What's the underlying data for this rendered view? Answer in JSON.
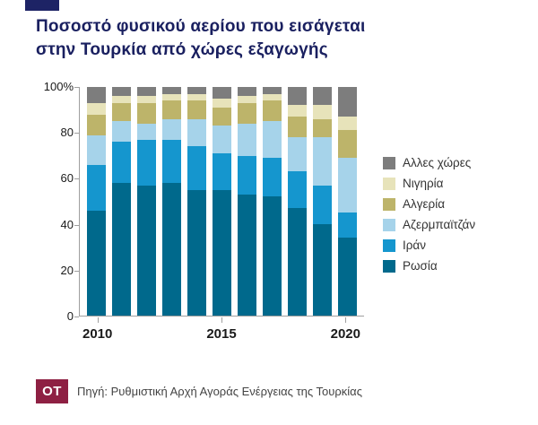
{
  "brand": {
    "square_color": "#1d2365",
    "title_color": "#1a2060"
  },
  "title": {
    "line1": "Ποσοστό φυσικού αερίου που εισάγεται",
    "line2": "στην Τουρκία από χώρες εξαγωγής"
  },
  "chart_data": {
    "type": "bar",
    "stacked": true,
    "title": "Ποσοστό φυσικού αερίου που εισάγεται στην Τουρκία από χώρες εξαγωγής",
    "x": [
      2010,
      2011,
      2012,
      2013,
      2014,
      2015,
      2016,
      2017,
      2018,
      2019,
      2020
    ],
    "x_labeled": [
      2010,
      2015,
      2020
    ],
    "ylim": [
      0,
      100
    ],
    "yticks": [
      0,
      20,
      40,
      60,
      80,
      100
    ],
    "ytick_labels": [
      "0",
      "20",
      "40",
      "60",
      "80",
      "100%"
    ],
    "grid": false,
    "legend_position": "right",
    "legend": [
      "Αλλες χώρες",
      "Νιγηρία",
      "Αλγερία",
      "Αζερμπαϊτζάν",
      "Ιράν",
      "Ρωσία"
    ],
    "series": [
      {
        "name": "Ρωσία",
        "color": "#00698c",
        "values": [
          46,
          58,
          57,
          58,
          55,
          55,
          53,
          52,
          47,
          40,
          34
        ]
      },
      {
        "name": "Ιράν",
        "color": "#1596ce",
        "values": [
          20,
          18,
          20,
          19,
          19,
          16,
          17,
          17,
          16,
          17,
          11
        ]
      },
      {
        "name": "Αζερμπαϊτζάν",
        "color": "#a6d3ea",
        "values": [
          13,
          9,
          7,
          9,
          12,
          12,
          14,
          16,
          15,
          21,
          24
        ]
      },
      {
        "name": "Αλγερία",
        "color": "#bdb46a",
        "values": [
          9,
          8,
          9,
          8,
          8,
          8,
          9,
          9,
          9,
          8,
          12
        ]
      },
      {
        "name": "Νιγηρία",
        "color": "#e7e3ba",
        "values": [
          5,
          3,
          3,
          3,
          3,
          4,
          3,
          3,
          5,
          6,
          6
        ]
      },
      {
        "name": "Αλλες χώρες",
        "color": "#7d7d7d",
        "values": [
          7,
          4,
          4,
          3,
          3,
          5,
          4,
          3,
          8,
          8,
          13
        ]
      }
    ]
  },
  "footer": {
    "logo_text": "OT",
    "logo_bg": "#8e2043",
    "source": "Πηγή: Ρυθμιστική Αρχή Αγοράς Ενέργειας της Τουρκίας"
  }
}
